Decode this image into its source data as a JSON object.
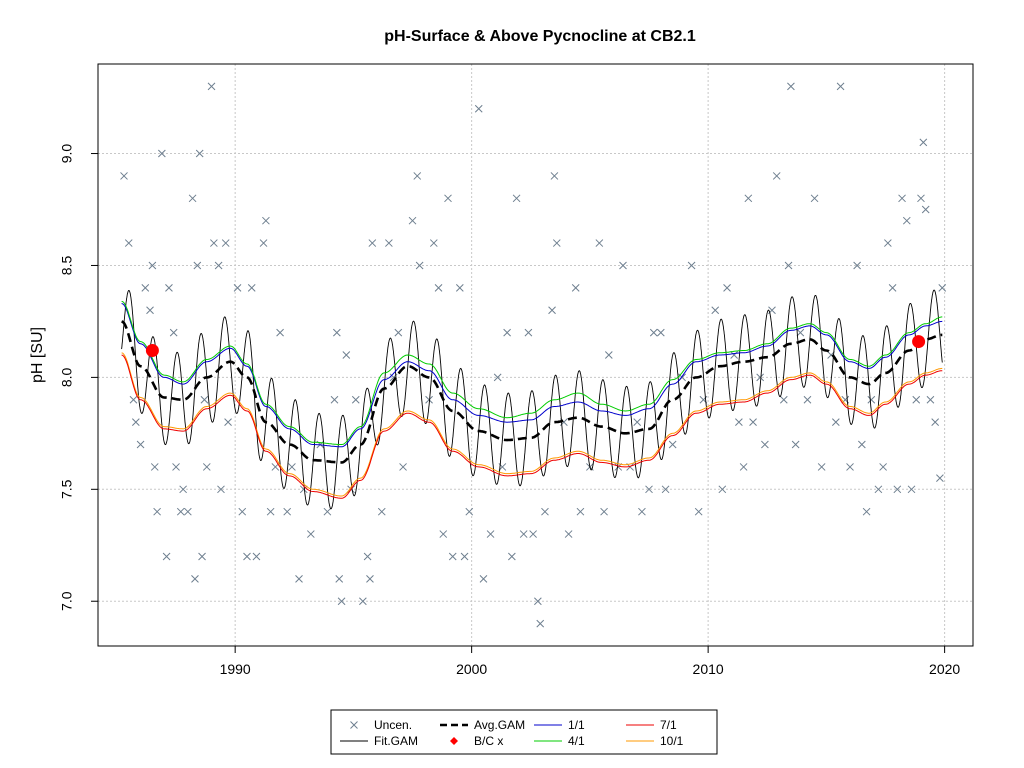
{
  "chart_data": {
    "type": "scatter",
    "title": "pH-Surface & Above Pycnocline at CB2.1",
    "xlabel": "",
    "ylabel": "pH [SU]",
    "xlim": [
      1984.2,
      2021.2
    ],
    "ylim": [
      6.8,
      9.4
    ],
    "x_ticks": [
      1990,
      2000,
      2010,
      2020
    ],
    "x_tick_labels": [
      "1990",
      "2000",
      "2010",
      "2020"
    ],
    "y_ticks": [
      7.0,
      7.5,
      8.0,
      8.5,
      9.0
    ],
    "y_tick_labels": [
      "7.0",
      "7.5",
      "8.0",
      "8.5",
      "9.0"
    ],
    "grid": true,
    "legend_position": "bottom-center",
    "colors": {
      "uncen": "#6e7f8f",
      "fit": "#000000",
      "avg": "#000000",
      "bc": "#ff0000",
      "s1_1": "#0000cc",
      "s4_1": "#00cc00",
      "s7_1": "#ee0000",
      "s10_1": "#ff9900"
    },
    "legend": [
      {
        "key": "uncen",
        "label": "Uncen."
      },
      {
        "key": "fit",
        "label": "Fit.GAM"
      },
      {
        "key": "avg",
        "label": "Avg.GAM"
      },
      {
        "key": "bc",
        "label": "B/C x"
      },
      {
        "key": "s1_1",
        "label": "1/1"
      },
      {
        "key": "s4_1",
        "label": "4/1"
      },
      {
        "key": "s7_1",
        "label": "7/1"
      },
      {
        "key": "s10_1",
        "label": "10/1"
      }
    ],
    "bc_points": [
      {
        "x": 1986.5,
        "y": 8.12
      },
      {
        "x": 2018.9,
        "y": 8.16
      }
    ],
    "avg_gam": [
      [
        1985.2,
        8.25
      ],
      [
        1986,
        8.05
      ],
      [
        1987,
        7.91
      ],
      [
        1987.8,
        7.9
      ],
      [
        1988.8,
        8.0
      ],
      [
        1989.8,
        8.07
      ],
      [
        1990.5,
        8.0
      ],
      [
        1991.3,
        7.8
      ],
      [
        1992.3,
        7.7
      ],
      [
        1993.3,
        7.63
      ],
      [
        1994.5,
        7.62
      ],
      [
        1995.3,
        7.7
      ],
      [
        1996.3,
        7.95
      ],
      [
        1997.3,
        8.05
      ],
      [
        1998.2,
        8.0
      ],
      [
        1999.2,
        7.85
      ],
      [
        2000.3,
        7.76
      ],
      [
        2001.5,
        7.72
      ],
      [
        2002.5,
        7.73
      ],
      [
        2003.5,
        7.8
      ],
      [
        2004.5,
        7.82
      ],
      [
        2005.5,
        7.78
      ],
      [
        2006.5,
        7.75
      ],
      [
        2007.5,
        7.77
      ],
      [
        2008.5,
        7.9
      ],
      [
        2009.5,
        8.0
      ],
      [
        2010.5,
        8.05
      ],
      [
        2011.5,
        8.07
      ],
      [
        2012.5,
        8.09
      ],
      [
        2013.5,
        8.15
      ],
      [
        2014.3,
        8.17
      ],
      [
        2015,
        8.12
      ],
      [
        2016,
        8.0
      ],
      [
        2016.8,
        7.97
      ],
      [
        2017.5,
        8.02
      ],
      [
        2018.5,
        8.12
      ],
      [
        2019.2,
        8.17
      ],
      [
        2019.9,
        8.19
      ]
    ],
    "series_1_1": [
      [
        1985.2,
        8.33
      ],
      [
        1986,
        8.15
      ],
      [
        1987,
        8.0
      ],
      [
        1987.8,
        7.97
      ],
      [
        1988.8,
        8.07
      ],
      [
        1989.8,
        8.13
      ],
      [
        1990.5,
        8.05
      ],
      [
        1991.3,
        7.87
      ],
      [
        1992.3,
        7.77
      ],
      [
        1993.3,
        7.7
      ],
      [
        1994.5,
        7.69
      ],
      [
        1995.3,
        7.77
      ],
      [
        1996.3,
        7.99
      ],
      [
        1997.3,
        8.07
      ],
      [
        1998.2,
        8.03
      ],
      [
        1999.2,
        7.9
      ],
      [
        2000.3,
        7.83
      ],
      [
        2001.5,
        7.8
      ],
      [
        2002.5,
        7.81
      ],
      [
        2003.5,
        7.87
      ],
      [
        2004.5,
        7.89
      ],
      [
        2005.5,
        7.85
      ],
      [
        2006.5,
        7.83
      ],
      [
        2007.5,
        7.86
      ],
      [
        2008.5,
        7.97
      ],
      [
        2009.5,
        8.07
      ],
      [
        2010.5,
        8.1
      ],
      [
        2011.5,
        8.11
      ],
      [
        2012.5,
        8.14
      ],
      [
        2013.5,
        8.21
      ],
      [
        2014.3,
        8.23
      ],
      [
        2015,
        8.19
      ],
      [
        2016,
        8.07
      ],
      [
        2016.8,
        8.04
      ],
      [
        2017.5,
        8.09
      ],
      [
        2018.5,
        8.19
      ],
      [
        2019.2,
        8.23
      ],
      [
        2019.9,
        8.25
      ]
    ],
    "series_4_1": [
      [
        1985.2,
        8.34
      ],
      [
        1986,
        8.16
      ],
      [
        1987,
        8.01
      ],
      [
        1987.8,
        7.98
      ],
      [
        1988.8,
        8.08
      ],
      [
        1989.8,
        8.14
      ],
      [
        1990.5,
        8.06
      ],
      [
        1991.3,
        7.88
      ],
      [
        1992.3,
        7.78
      ],
      [
        1993.3,
        7.71
      ],
      [
        1994.5,
        7.7
      ],
      [
        1995.3,
        7.78
      ],
      [
        1996.3,
        8.02
      ],
      [
        1997.3,
        8.1
      ],
      [
        1998.2,
        8.06
      ],
      [
        1999.2,
        7.93
      ],
      [
        2000.3,
        7.86
      ],
      [
        2001.5,
        7.82
      ],
      [
        2002.5,
        7.84
      ],
      [
        2003.5,
        7.9
      ],
      [
        2004.5,
        7.93
      ],
      [
        2005.5,
        7.88
      ],
      [
        2006.5,
        7.85
      ],
      [
        2007.5,
        7.88
      ],
      [
        2008.5,
        7.99
      ],
      [
        2009.5,
        8.08
      ],
      [
        2010.5,
        8.11
      ],
      [
        2011.5,
        8.12
      ],
      [
        2012.5,
        8.15
      ],
      [
        2013.5,
        8.22
      ],
      [
        2014.3,
        8.24
      ],
      [
        2015,
        8.2
      ],
      [
        2016,
        8.08
      ],
      [
        2016.8,
        8.05
      ],
      [
        2017.5,
        8.1
      ],
      [
        2018.5,
        8.2
      ],
      [
        2019.2,
        8.24
      ],
      [
        2019.9,
        8.27
      ]
    ],
    "series_7_1": [
      [
        1985.2,
        8.1
      ],
      [
        1986,
        7.9
      ],
      [
        1987,
        7.77
      ],
      [
        1987.8,
        7.76
      ],
      [
        1988.8,
        7.86
      ],
      [
        1989.8,
        7.92
      ],
      [
        1990.5,
        7.85
      ],
      [
        1991.3,
        7.67
      ],
      [
        1992.3,
        7.56
      ],
      [
        1993.3,
        7.49
      ],
      [
        1994.5,
        7.46
      ],
      [
        1995.3,
        7.54
      ],
      [
        1996.3,
        7.76
      ],
      [
        1997.3,
        7.84
      ],
      [
        1998.2,
        7.8
      ],
      [
        1999.2,
        7.67
      ],
      [
        2000.3,
        7.6
      ],
      [
        2001.5,
        7.56
      ],
      [
        2002.5,
        7.57
      ],
      [
        2003.5,
        7.63
      ],
      [
        2004.5,
        7.66
      ],
      [
        2005.5,
        7.62
      ],
      [
        2006.5,
        7.6
      ],
      [
        2007.5,
        7.63
      ],
      [
        2008.5,
        7.74
      ],
      [
        2009.5,
        7.84
      ],
      [
        2010.5,
        7.88
      ],
      [
        2011.5,
        7.89
      ],
      [
        2012.5,
        7.93
      ],
      [
        2013.5,
        7.99
      ],
      [
        2014.3,
        8.01
      ],
      [
        2015,
        7.97
      ],
      [
        2016,
        7.86
      ],
      [
        2016.8,
        7.83
      ],
      [
        2017.5,
        7.88
      ],
      [
        2018.5,
        7.97
      ],
      [
        2019.2,
        8.01
      ],
      [
        2019.9,
        8.03
      ]
    ],
    "series_10_1": [
      [
        1985.2,
        8.11
      ],
      [
        1986,
        7.91
      ],
      [
        1987,
        7.78
      ],
      [
        1987.8,
        7.77
      ],
      [
        1988.8,
        7.87
      ],
      [
        1989.8,
        7.93
      ],
      [
        1990.5,
        7.86
      ],
      [
        1991.3,
        7.68
      ],
      [
        1992.3,
        7.57
      ],
      [
        1993.3,
        7.5
      ],
      [
        1994.5,
        7.47
      ],
      [
        1995.3,
        7.55
      ],
      [
        1996.3,
        7.77
      ],
      [
        1997.3,
        7.85
      ],
      [
        1998.2,
        7.81
      ],
      [
        1999.2,
        7.68
      ],
      [
        2000.3,
        7.61
      ],
      [
        2001.5,
        7.57
      ],
      [
        2002.5,
        7.58
      ],
      [
        2003.5,
        7.64
      ],
      [
        2004.5,
        7.67
      ],
      [
        2005.5,
        7.63
      ],
      [
        2006.5,
        7.61
      ],
      [
        2007.5,
        7.64
      ],
      [
        2008.5,
        7.75
      ],
      [
        2009.5,
        7.85
      ],
      [
        2010.5,
        7.89
      ],
      [
        2011.5,
        7.9
      ],
      [
        2012.5,
        7.94
      ],
      [
        2013.5,
        8.0
      ],
      [
        2014.3,
        8.02
      ],
      [
        2015,
        7.98
      ],
      [
        2016,
        7.87
      ],
      [
        2016.8,
        7.84
      ],
      [
        2017.5,
        7.89
      ],
      [
        2018.5,
        7.98
      ],
      [
        2019.2,
        8.02
      ],
      [
        2019.9,
        8.04
      ]
    ],
    "fit_gam": {
      "x_start": 1985.2,
      "x_end": 2019.9,
      "seasonal_amplitude": 0.21
    },
    "uncensored_points": [
      [
        1985.3,
        8.9
      ],
      [
        1985.5,
        8.6
      ],
      [
        1985.7,
        7.9
      ],
      [
        1985.8,
        7.8
      ],
      [
        1986,
        7.7
      ],
      [
        1986.2,
        8.4
      ],
      [
        1986.4,
        8.3
      ],
      [
        1986.5,
        8.5
      ],
      [
        1986.6,
        7.6
      ],
      [
        1986.7,
        7.4
      ],
      [
        1986.9,
        9.0
      ],
      [
        1987.1,
        7.2
      ],
      [
        1987.2,
        8.4
      ],
      [
        1987.4,
        8.2
      ],
      [
        1987.5,
        7.6
      ],
      [
        1987.7,
        7.4
      ],
      [
        1987.8,
        7.5
      ],
      [
        1988,
        7.4
      ],
      [
        1988.2,
        8.8
      ],
      [
        1988.3,
        7.1
      ],
      [
        1988.4,
        8.5
      ],
      [
        1988.5,
        9.0
      ],
      [
        1988.6,
        7.2
      ],
      [
        1988.7,
        7.9
      ],
      [
        1988.8,
        7.6
      ],
      [
        1989,
        9.3
      ],
      [
        1989.1,
        8.6
      ],
      [
        1989.3,
        8.5
      ],
      [
        1989.4,
        7.5
      ],
      [
        1989.6,
        8.6
      ],
      [
        1989.7,
        7.8
      ],
      [
        1990.1,
        8.4
      ],
      [
        1990.3,
        7.4
      ],
      [
        1990.5,
        7.2
      ],
      [
        1990.7,
        8.4
      ],
      [
        1990.9,
        7.2
      ],
      [
        1991.2,
        8.6
      ],
      [
        1991.3,
        8.7
      ],
      [
        1991.5,
        7.4
      ],
      [
        1991.7,
        7.6
      ],
      [
        1991.9,
        8.2
      ],
      [
        1992.2,
        7.4
      ],
      [
        1992.4,
        7.6
      ],
      [
        1992.7,
        7.1
      ],
      [
        1992.9,
        7.5
      ],
      [
        1993.2,
        7.3
      ],
      [
        1993.6,
        7.7
      ],
      [
        1993.9,
        7.4
      ],
      [
        1994.2,
        7.9
      ],
      [
        1994.3,
        8.2
      ],
      [
        1994.4,
        7.1
      ],
      [
        1994.5,
        7.0
      ],
      [
        1994.7,
        8.1
      ],
      [
        1994.9,
        7.5
      ],
      [
        1995.1,
        7.9
      ],
      [
        1995.4,
        7.0
      ],
      [
        1995.6,
        7.2
      ],
      [
        1995.7,
        7.1
      ],
      [
        1995.8,
        8.6
      ],
      [
        1996.2,
        7.4
      ],
      [
        1996.5,
        8.6
      ],
      [
        1996.7,
        8.0
      ],
      [
        1996.9,
        8.2
      ],
      [
        1997.1,
        7.6
      ],
      [
        1997.5,
        8.7
      ],
      [
        1997.7,
        8.9
      ],
      [
        1997.8,
        8.5
      ],
      [
        1998.2,
        7.9
      ],
      [
        1998.4,
        8.6
      ],
      [
        1998.6,
        8.4
      ],
      [
        1998.8,
        7.3
      ],
      [
        1999,
        8.8
      ],
      [
        1999.2,
        7.2
      ],
      [
        1999.5,
        8.4
      ],
      [
        1999.7,
        7.2
      ],
      [
        1999.9,
        7.4
      ],
      [
        2000.3,
        9.2
      ],
      [
        2000.5,
        7.1
      ],
      [
        2000.8,
        7.3
      ],
      [
        2001.1,
        8.0
      ],
      [
        2001.3,
        7.6
      ],
      [
        2001.5,
        8.2
      ],
      [
        2001.7,
        7.2
      ],
      [
        2001.9,
        8.8
      ],
      [
        2002.2,
        7.3
      ],
      [
        2002.4,
        8.2
      ],
      [
        2002.6,
        7.3
      ],
      [
        2002.8,
        7.0
      ],
      [
        2002.9,
        6.9
      ],
      [
        2003.1,
        7.4
      ],
      [
        2003.4,
        8.3
      ],
      [
        2003.5,
        8.9
      ],
      [
        2003.6,
        8.6
      ],
      [
        2003.9,
        7.8
      ],
      [
        2004.1,
        7.3
      ],
      [
        2004.4,
        8.4
      ],
      [
        2004.6,
        7.4
      ],
      [
        2005,
        7.6
      ],
      [
        2005.4,
        8.6
      ],
      [
        2005.6,
        7.4
      ],
      [
        2005.8,
        8.1
      ],
      [
        2006.2,
        7.6
      ],
      [
        2006.4,
        8.5
      ],
      [
        2006.7,
        7.6
      ],
      [
        2007,
        7.8
      ],
      [
        2007.2,
        7.4
      ],
      [
        2007.5,
        7.5
      ],
      [
        2007.7,
        8.2
      ],
      [
        2008,
        8.2
      ],
      [
        2008.2,
        7.5
      ],
      [
        2008.5,
        7.7
      ],
      [
        2008.9,
        8.0
      ],
      [
        2009.3,
        8.5
      ],
      [
        2009.6,
        7.4
      ],
      [
        2009.8,
        7.9
      ],
      [
        2010.3,
        8.3
      ],
      [
        2010.6,
        7.5
      ],
      [
        2010.8,
        8.4
      ],
      [
        2011.1,
        8.1
      ],
      [
        2011.3,
        7.8
      ],
      [
        2011.5,
        7.6
      ],
      [
        2011.7,
        8.8
      ],
      [
        2011.9,
        7.8
      ],
      [
        2012.2,
        8.0
      ],
      [
        2012.4,
        7.7
      ],
      [
        2012.7,
        8.3
      ],
      [
        2012.9,
        8.9
      ],
      [
        2013.2,
        7.9
      ],
      [
        2013.4,
        8.5
      ],
      [
        2013.5,
        9.3
      ],
      [
        2013.7,
        7.7
      ],
      [
        2013.9,
        8.2
      ],
      [
        2014.2,
        7.9
      ],
      [
        2014.5,
        8.8
      ],
      [
        2014.8,
        7.6
      ],
      [
        2015.2,
        8.1
      ],
      [
        2015.4,
        7.8
      ],
      [
        2015.6,
        9.3
      ],
      [
        2015.8,
        7.9
      ],
      [
        2016,
        7.6
      ],
      [
        2016.3,
        8.5
      ],
      [
        2016.5,
        7.7
      ],
      [
        2016.7,
        7.4
      ],
      [
        2016.9,
        7.9
      ],
      [
        2017.2,
        7.5
      ],
      [
        2017.4,
        7.6
      ],
      [
        2017.6,
        8.6
      ],
      [
        2017.8,
        8.4
      ],
      [
        2018,
        7.5
      ],
      [
        2018.2,
        8.8
      ],
      [
        2018.4,
        8.7
      ],
      [
        2018.6,
        7.5
      ],
      [
        2018.8,
        7.9
      ],
      [
        2019,
        8.8
      ],
      [
        2019.1,
        9.05
      ],
      [
        2019.2,
        8.75
      ],
      [
        2019.4,
        7.9
      ],
      [
        2019.6,
        7.8
      ],
      [
        2019.8,
        7.55
      ],
      [
        2019.9,
        8.4
      ]
    ]
  }
}
